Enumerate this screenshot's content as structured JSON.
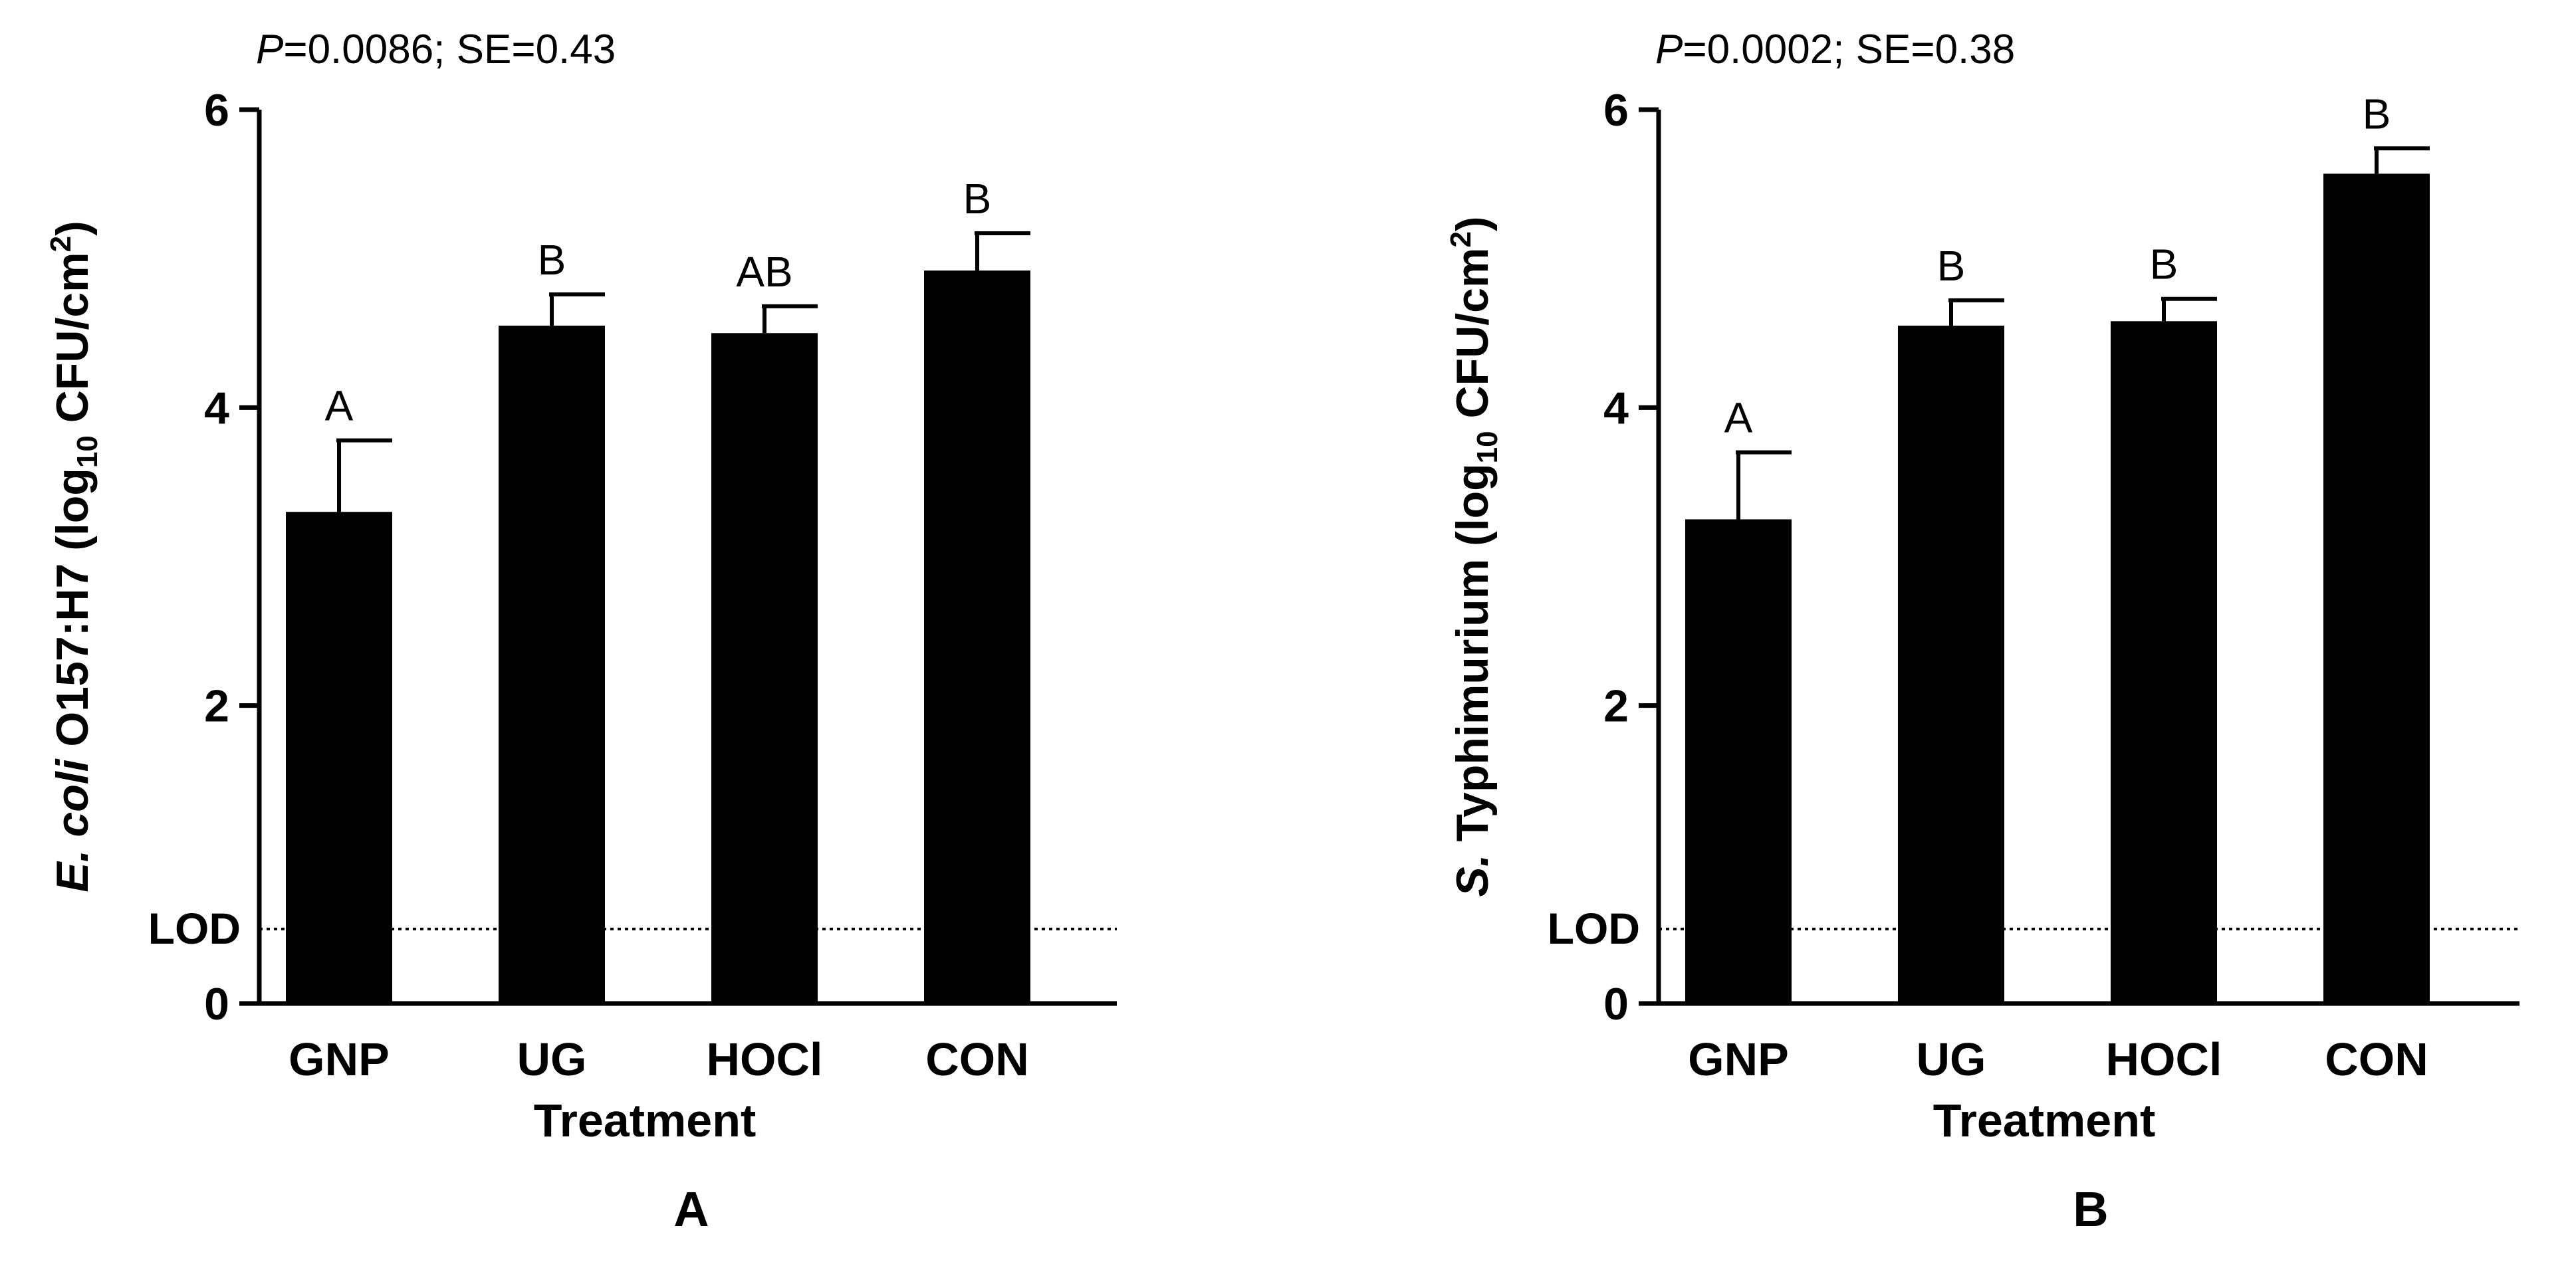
{
  "chart_data": [
    {
      "type": "bar",
      "panel": "A",
      "stat_p_label": "P",
      "stat_rest": "=0.0086; SE=0.43",
      "ylabel_parts": [
        {
          "text": "E. coli",
          "italic": true
        },
        {
          "text": " O157:H7 (log",
          "italic": false
        },
        {
          "text": "10",
          "sub": true
        },
        {
          "text": " CFU/cm",
          "italic": false
        },
        {
          "text": "2",
          "sup": true
        },
        {
          "text": ")",
          "italic": false
        }
      ],
      "xlabel": "Treatment",
      "categories": [
        "GNP",
        "UG",
        "HOCl",
        "CON"
      ],
      "values": [
        3.3,
        4.55,
        4.5,
        4.92
      ],
      "errors": [
        0.48,
        0.21,
        0.18,
        0.25
      ],
      "letters": [
        "A",
        "B",
        "AB",
        "B"
      ],
      "ylim": [
        0,
        6
      ],
      "yticks": [
        0,
        2,
        4,
        6
      ],
      "lod_label": "LOD",
      "lod_value": 0.5
    },
    {
      "type": "bar",
      "panel": "B",
      "stat_p_label": "P",
      "stat_rest": "=0.0002; SE=0.38",
      "ylabel_parts": [
        {
          "text": "S.",
          "italic": true
        },
        {
          "text": " Typhimurium (log",
          "italic": false
        },
        {
          "text": "10",
          "sub": true
        },
        {
          "text": " CFU/cm",
          "italic": false
        },
        {
          "text": "2",
          "sup": true
        },
        {
          "text": ")",
          "italic": false
        }
      ],
      "xlabel": "Treatment",
      "categories": [
        "GNP",
        "UG",
        "HOCl",
        "CON"
      ],
      "values": [
        3.25,
        4.55,
        4.58,
        5.57
      ],
      "errors": [
        0.45,
        0.17,
        0.15,
        0.17
      ],
      "letters": [
        "A",
        "B",
        "B",
        "B"
      ],
      "ylim": [
        0,
        6
      ],
      "yticks": [
        0,
        2,
        4,
        6
      ],
      "lod_label": "LOD",
      "lod_value": 0.5
    }
  ]
}
